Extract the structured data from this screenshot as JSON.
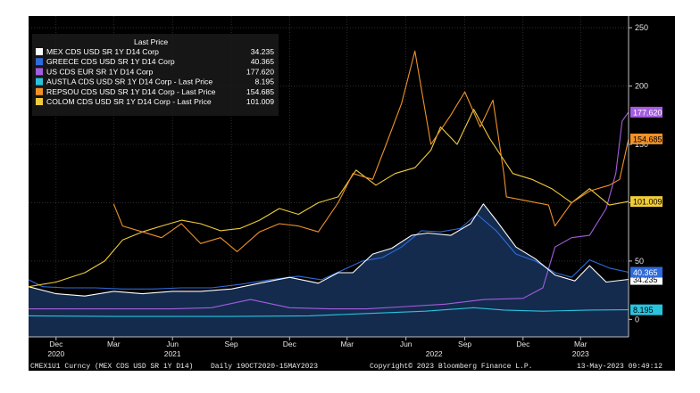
{
  "chart_data": {
    "type": "line",
    "legend_title": "Last Price",
    "legend_position": "top-left",
    "y_axis_side": "right",
    "ylim": [
      -15,
      260
    ],
    "yticks": [
      0,
      50,
      100,
      150,
      200,
      250
    ],
    "x_ticks": [
      {
        "label": "Dec",
        "x": "2020-12-01"
      },
      {
        "label": "Mar",
        "x": "2021-03-01"
      },
      {
        "label": "Jun",
        "x": "2021-06-01"
      },
      {
        "label": "Sep",
        "x": "2021-09-01"
      },
      {
        "label": "Dec",
        "x": "2021-12-01"
      },
      {
        "label": "Mar",
        "x": "2022-03-01"
      },
      {
        "label": "Jun",
        "x": "2022-06-01"
      },
      {
        "label": "Sep",
        "x": "2022-09-01"
      },
      {
        "label": "Dec",
        "x": "2022-12-01"
      },
      {
        "label": "Mar",
        "x": "2023-03-01"
      }
    ],
    "x_years": [
      {
        "label": "2020",
        "x": "2020-12-01"
      },
      {
        "label": "2021",
        "x": "2021-06-01"
      },
      {
        "label": "2022",
        "x": "2022-07-15"
      },
      {
        "label": "2023",
        "x": "2023-03-01"
      }
    ],
    "xlim": [
      "2020-10-19",
      "2023-05-15"
    ],
    "series": [
      {
        "name": "MEX CDS USD SR 1Y D14 Corp",
        "color": "#ffffff",
        "last": "34.235",
        "tag_label": "34.235",
        "tag_bg": "#ffffff",
        "tag_fg": "#000000",
        "tag_y": 34.235,
        "points": [
          [
            "2020-10-19",
            28
          ],
          [
            "2020-12-01",
            22
          ],
          [
            "2021-01-15",
            20
          ],
          [
            "2021-03-01",
            24
          ],
          [
            "2021-04-15",
            22
          ],
          [
            "2021-06-01",
            24
          ],
          [
            "2021-07-15",
            24
          ],
          [
            "2021-09-01",
            26
          ],
          [
            "2021-10-15",
            31
          ],
          [
            "2021-12-01",
            36
          ],
          [
            "2022-01-15",
            31
          ],
          [
            "2022-02-15",
            40
          ],
          [
            "2022-03-10",
            40
          ],
          [
            "2022-04-10",
            56
          ],
          [
            "2022-05-10",
            61
          ],
          [
            "2022-06-10",
            72
          ],
          [
            "2022-07-05",
            74
          ],
          [
            "2022-08-10",
            72
          ],
          [
            "2022-09-10",
            82
          ],
          [
            "2022-09-30",
            99
          ],
          [
            "2022-10-20",
            85
          ],
          [
            "2022-11-20",
            62
          ],
          [
            "2022-12-20",
            52
          ],
          [
            "2023-01-20",
            38
          ],
          [
            "2023-02-20",
            33
          ],
          [
            "2023-03-15",
            46
          ],
          [
            "2023-04-10",
            32
          ],
          [
            "2023-05-15",
            34.235
          ]
        ]
      },
      {
        "name": "GREECE CDS USD SR 1Y D14 Corp",
        "color": "#2e6bdc",
        "last": "40.365",
        "tag_label": "40.365",
        "tag_bg": "#2e6bdc",
        "tag_fg": "#ffffff",
        "tag_y": 40.365,
        "points": [
          [
            "2020-10-19",
            34
          ],
          [
            "2020-11-10",
            28
          ],
          [
            "2020-12-15",
            27
          ],
          [
            "2021-02-01",
            27
          ],
          [
            "2021-03-15",
            26
          ],
          [
            "2021-05-01",
            26
          ],
          [
            "2021-06-15",
            27
          ],
          [
            "2021-08-01",
            27
          ],
          [
            "2021-09-15",
            30
          ],
          [
            "2021-11-01",
            34
          ],
          [
            "2021-12-15",
            37
          ],
          [
            "2022-01-20",
            34
          ],
          [
            "2022-02-25",
            43
          ],
          [
            "2022-03-25",
            50
          ],
          [
            "2022-04-25",
            53
          ],
          [
            "2022-05-25",
            62
          ],
          [
            "2022-06-25",
            76
          ],
          [
            "2022-07-25",
            75
          ],
          [
            "2022-08-25",
            78
          ],
          [
            "2022-09-20",
            90
          ],
          [
            "2022-10-20",
            76
          ],
          [
            "2022-11-20",
            56
          ],
          [
            "2022-12-20",
            50
          ],
          [
            "2023-01-20",
            40
          ],
          [
            "2023-02-15",
            36
          ],
          [
            "2023-03-15",
            51
          ],
          [
            "2023-04-15",
            44
          ],
          [
            "2023-05-15",
            40.365
          ]
        ]
      },
      {
        "name": "US CDS EUR SR 1Y D14 Corp",
        "color": "#a45de0",
        "last": "177.620",
        "tag_label": "177.620",
        "tag_bg": "#a45de0",
        "tag_fg": "#ffffff",
        "tag_y": 177.62,
        "points": [
          [
            "2020-10-19",
            9
          ],
          [
            "2021-06-01",
            9
          ],
          [
            "2021-08-01",
            10
          ],
          [
            "2021-10-01",
            17
          ],
          [
            "2021-12-01",
            10
          ],
          [
            "2022-02-01",
            9
          ],
          [
            "2022-04-01",
            9
          ],
          [
            "2022-06-01",
            11
          ],
          [
            "2022-08-01",
            13
          ],
          [
            "2022-10-01",
            17
          ],
          [
            "2022-12-01",
            18
          ],
          [
            "2023-01-01",
            27
          ],
          [
            "2023-01-20",
            62
          ],
          [
            "2023-02-15",
            70
          ],
          [
            "2023-03-15",
            72
          ],
          [
            "2023-04-10",
            95
          ],
          [
            "2023-04-25",
            125
          ],
          [
            "2023-05-05",
            170
          ],
          [
            "2023-05-15",
            177.62
          ]
        ]
      },
      {
        "name": "AUSTLA CDS USD SR 1Y D14 Corp - Last Price",
        "color": "#29c3de",
        "last": "8.195",
        "tag_label": "8.195",
        "tag_bg": "#29c3de",
        "tag_fg": "#000000",
        "tag_y": 8.195,
        "points": [
          [
            "2020-10-19",
            3
          ],
          [
            "2021-03-01",
            2.5
          ],
          [
            "2021-09-01",
            2.5
          ],
          [
            "2022-01-01",
            3
          ],
          [
            "2022-04-01",
            5
          ],
          [
            "2022-07-01",
            7
          ],
          [
            "2022-09-15",
            10
          ],
          [
            "2022-11-01",
            8
          ],
          [
            "2023-01-01",
            7
          ],
          [
            "2023-03-15",
            8
          ],
          [
            "2023-05-15",
            8.195
          ]
        ]
      },
      {
        "name": "REPSOU CDS USD SR 1Y D14 Corp - Last Price",
        "color": "#f0922a",
        "last": "154.685",
        "tag_label": "154.685",
        "tag_bg": "#f0922a",
        "tag_fg": "#000000",
        "tag_y": 154.685,
        "points": [
          [
            "2021-03-01",
            99
          ],
          [
            "2021-03-15",
            80
          ],
          [
            "2021-04-15",
            75
          ],
          [
            "2021-05-15",
            70
          ],
          [
            "2021-06-15",
            82
          ],
          [
            "2021-07-15",
            65
          ],
          [
            "2021-08-15",
            70
          ],
          [
            "2021-09-10",
            58
          ],
          [
            "2021-10-15",
            75
          ],
          [
            "2021-11-15",
            82
          ],
          [
            "2021-12-15",
            80
          ],
          [
            "2022-01-15",
            75
          ],
          [
            "2022-02-15",
            100
          ],
          [
            "2022-03-10",
            125
          ],
          [
            "2022-04-10",
            120
          ],
          [
            "2022-05-01",
            150
          ],
          [
            "2022-05-25",
            185
          ],
          [
            "2022-06-15",
            230
          ],
          [
            "2022-07-10",
            150
          ],
          [
            "2022-08-10",
            175
          ],
          [
            "2022-09-01",
            195
          ],
          [
            "2022-09-25",
            165
          ],
          [
            "2022-10-15",
            188
          ],
          [
            "2022-11-01",
            125
          ],
          [
            "2022-11-05",
            105
          ],
          [
            "2023-01-10",
            98
          ],
          [
            "2023-01-20",
            80
          ],
          [
            "2023-02-15",
            100
          ],
          [
            "2023-03-15",
            110
          ],
          [
            "2023-04-15",
            115
          ],
          [
            "2023-05-01",
            120
          ],
          [
            "2023-05-15",
            154.685
          ]
        ]
      },
      {
        "name": "COLOM CDS USD SR 1Y D14 Corp - Last Price",
        "color": "#f0cc3a",
        "last": "101.009",
        "tag_label": "101.009",
        "tag_bg": "#f0cc3a",
        "tag_fg": "#000000",
        "tag_y": 101.009,
        "points": [
          [
            "2020-10-19",
            28
          ],
          [
            "2020-12-01",
            32
          ],
          [
            "2021-01-15",
            40
          ],
          [
            "2021-02-15",
            50
          ],
          [
            "2021-03-15",
            68
          ],
          [
            "2021-04-15",
            75
          ],
          [
            "2021-05-15",
            80
          ],
          [
            "2021-06-15",
            85
          ],
          [
            "2021-07-15",
            82
          ],
          [
            "2021-08-15",
            76
          ],
          [
            "2021-09-15",
            78
          ],
          [
            "2021-10-15",
            85
          ],
          [
            "2021-11-15",
            95
          ],
          [
            "2021-12-15",
            90
          ],
          [
            "2022-01-15",
            100
          ],
          [
            "2022-02-15",
            105
          ],
          [
            "2022-03-15",
            128
          ],
          [
            "2022-04-15",
            115
          ],
          [
            "2022-05-15",
            125
          ],
          [
            "2022-06-15",
            130
          ],
          [
            "2022-07-10",
            145
          ],
          [
            "2022-07-25",
            165
          ],
          [
            "2022-08-20",
            150
          ],
          [
            "2022-09-15",
            180
          ],
          [
            "2022-10-10",
            155
          ],
          [
            "2022-11-15",
            125
          ],
          [
            "2022-12-15",
            120
          ],
          [
            "2023-01-15",
            112
          ],
          [
            "2023-02-15",
            100
          ],
          [
            "2023-03-15",
            112
          ],
          [
            "2023-04-15",
            98
          ],
          [
            "2023-05-15",
            101.009
          ]
        ]
      }
    ]
  },
  "footer": {
    "ticker": "CMEX1U1 Curncy (MEX CDS USD SR 1Y D14)",
    "range": "Daily 19OCT2020-15MAY2023",
    "copyright": "Copyright© 2023 Bloomberg Finance L.P.",
    "timestamp": "13-May-2023 09:49:12"
  },
  "colors": {
    "background": "#000000",
    "area_fill": "#142b4e"
  }
}
